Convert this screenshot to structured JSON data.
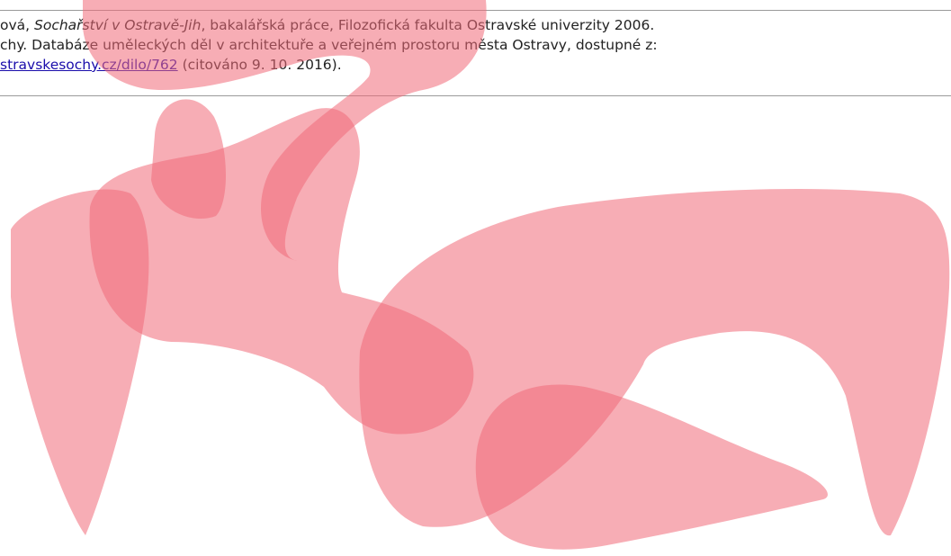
{
  "references": [
    {
      "before": "ová, ",
      "title": "Sochařství v Ostravě-Jih",
      "after": ", bakalářská práce, Filozofická fakulta Ostravské univerzity 2006."
    },
    {
      "text": "chy. Databáze uměleckých děl v architektuře a veřejném prostoru města Ostravy, dostupné z:"
    },
    {
      "link": "stravskesochy.cz/dilo/762",
      "after": " (citováno 9. 10. 2016)."
    }
  ]
}
